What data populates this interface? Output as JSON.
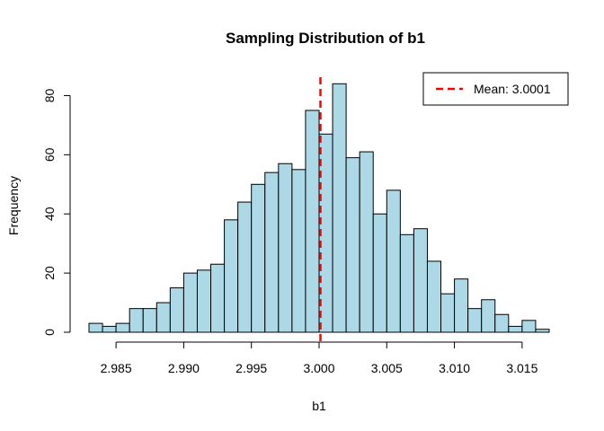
{
  "chart_data": {
    "type": "bar",
    "title": "Sampling Distribution of b1",
    "xlabel": "b1",
    "ylabel": "Frequency",
    "bin_width": 0.001,
    "bin_start": 2.983,
    "counts": [
      3,
      2,
      3,
      8,
      8,
      10,
      15,
      20,
      21,
      23,
      38,
      44,
      50,
      54,
      57,
      55,
      75,
      67,
      84,
      59,
      61,
      40,
      48,
      33,
      35,
      24,
      13,
      18,
      8,
      11,
      6,
      2,
      4,
      1
    ],
    "xlim": [
      2.983,
      3.017
    ],
    "ylim": [
      0,
      85
    ],
    "x_ticks": [
      2.985,
      2.99,
      2.995,
      3.0,
      3.005,
      3.01,
      3.015
    ],
    "x_tick_labels": [
      "2.985",
      "2.990",
      "2.995",
      "3.000",
      "3.005",
      "3.010",
      "3.015"
    ],
    "y_ticks": [
      0,
      20,
      40,
      60,
      80
    ],
    "y_tick_labels": [
      "0",
      "20",
      "40",
      "60",
      "80"
    ],
    "bar_color": "#ADD8E6",
    "mean_line": {
      "value": 3.0001,
      "color": "#FF0000",
      "style": "dashed"
    },
    "legend": {
      "placement": "top-right",
      "label": "Mean: 3.0001"
    }
  }
}
